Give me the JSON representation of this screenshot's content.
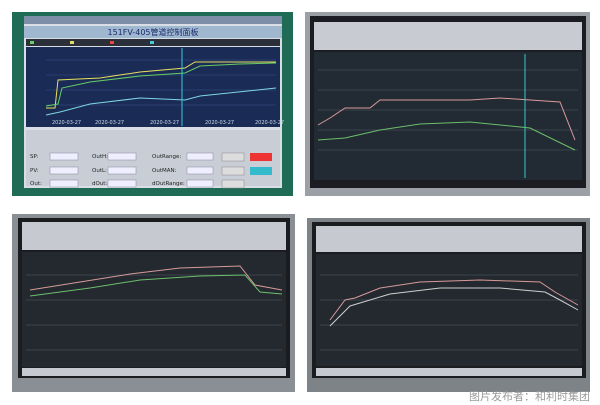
{
  "panels": [
    {
      "title": "151FV-405管道控制面板",
      "x_labels": [
        "2020-03-27",
        "2020-03-27",
        "2020-03-27",
        "2020-03-27",
        "2020-03-27"
      ],
      "fields": [
        "SP:",
        "OutH:",
        "OutRange:",
        "PV:",
        "OutL:",
        "OutMAN:",
        "Out:",
        "dOut:",
        "dOutRange:"
      ]
    }
  ],
  "caption": "图片发布者：和利时集团"
}
